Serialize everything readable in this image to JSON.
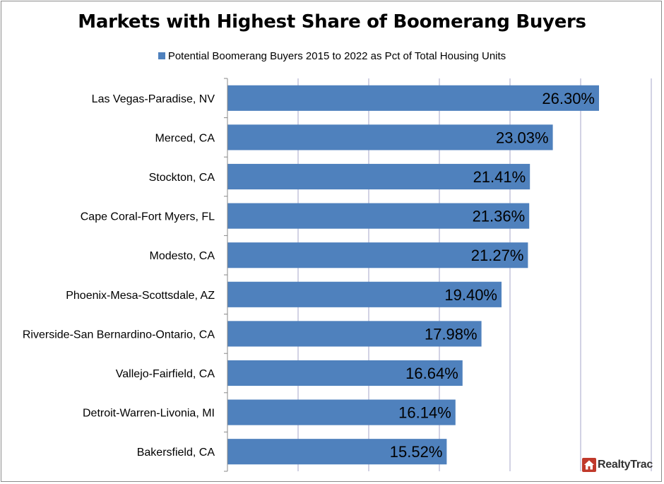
{
  "chart_data": {
    "type": "bar",
    "orientation": "horizontal",
    "title": "Markets with Highest Share of Boomerang Buyers",
    "legend": "Potential Boomerang Buyers 2015 to 2022 as Pct of Total Housing Units",
    "legend_position": "top",
    "series_color": "#4f81bd",
    "categories": [
      "Las Vegas-Paradise, NV",
      "Merced, CA",
      "Stockton, CA",
      "Cape Coral-Fort Myers, FL",
      "Modesto, CA",
      "Phoenix-Mesa-Scottsdale, AZ",
      "Riverside-San Bernardino-Ontario, CA",
      "Vallejo-Fairfield, CA",
      "Detroit-Warren-Livonia, MI",
      "Bakersfield, CA"
    ],
    "values": [
      26.3,
      23.03,
      21.41,
      21.36,
      21.27,
      19.4,
      17.98,
      16.64,
      16.14,
      15.52
    ],
    "data_labels": [
      "26.30%",
      "23.03%",
      "21.41%",
      "21.36%",
      "21.27%",
      "19.40%",
      "17.98%",
      "16.64%",
      "16.14%",
      "15.52%"
    ],
    "xlim": [
      0,
      30
    ],
    "grid": true
  },
  "logo": {
    "text": "RealtyTrac",
    "color": "#c0392b"
  }
}
